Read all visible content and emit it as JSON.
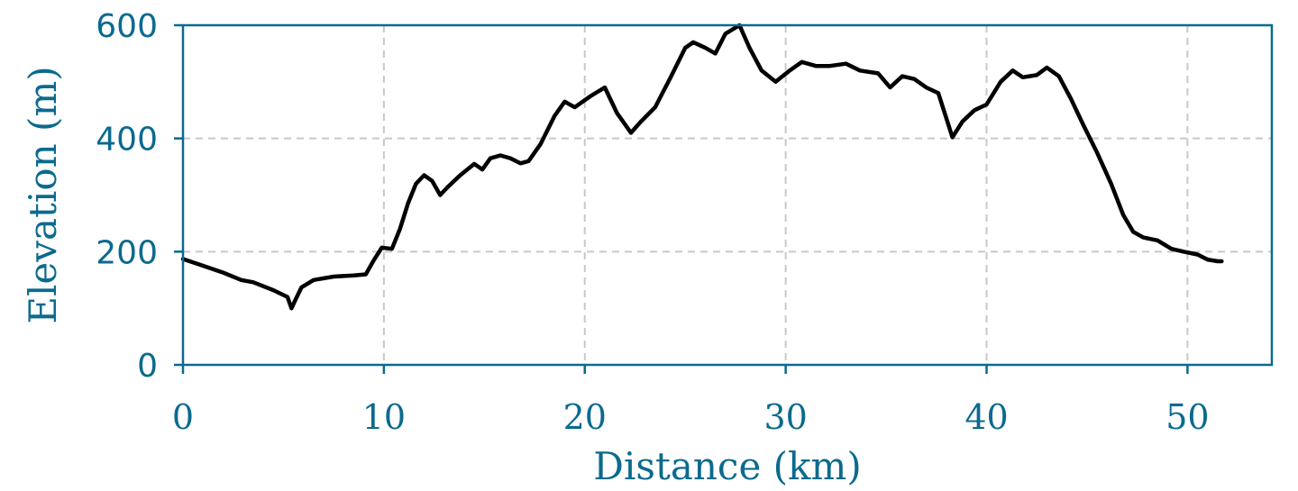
{
  "colors": {
    "axis": "#0b6a8e",
    "line": "#000000",
    "grid": "#c8c8c8",
    "background": "#ffffff"
  },
  "chart_data": {
    "type": "line",
    "title": "",
    "xlabel": "Distance (km)",
    "ylabel": "Elevation (m)",
    "xlim": [
      0,
      54.2
    ],
    "ylim": [
      0,
      600
    ],
    "xticks": [
      0,
      10,
      20,
      30,
      40,
      50
    ],
    "xtick_labels": [
      "0",
      "10",
      "20",
      "30",
      "40",
      "50"
    ],
    "yticks": [
      0,
      200,
      400,
      600
    ],
    "ytick_labels": [
      "0",
      "200",
      "400",
      "600"
    ],
    "grid": true,
    "legend": "none",
    "series": [
      {
        "x": [
          0,
          1,
          2,
          2.9,
          3.5,
          4.5,
          5.2,
          5.4,
          5.6,
          5.9,
          6.5,
          7.5,
          8.5,
          9.1,
          9.5,
          9.9,
          10.4,
          10.8,
          11.2,
          11.6,
          12,
          12.4,
          12.8,
          13.2,
          13.8,
          14.5,
          14.9,
          15.3,
          15.8,
          16.3,
          16.8,
          17.2,
          17.8,
          18.5,
          19,
          19.5,
          20.3,
          21,
          21.6,
          22.3,
          22.8,
          23.5,
          24.3,
          25,
          25.4,
          26,
          26.5,
          27,
          27.7,
          28.2,
          28.8,
          29.5,
          30.2,
          30.8,
          31.5,
          32.2,
          33,
          33.7,
          34.6,
          35.2,
          35.8,
          36.4,
          37,
          37.6,
          38.3,
          38.8,
          39.4,
          40,
          40.7,
          41.3,
          41.8,
          42.5,
          43,
          43.6,
          44.2,
          44.8,
          45.5,
          46.2,
          46.8,
          47.3,
          47.8,
          48.5,
          49.2,
          49.8,
          50.5,
          51,
          51.5,
          51.7
        ],
        "y": [
          187,
          175,
          163,
          150,
          146,
          132,
          120,
          100,
          115,
          137,
          150,
          156,
          158,
          160,
          185,
          207,
          205,
          240,
          285,
          320,
          335,
          325,
          300,
          315,
          335,
          355,
          345,
          365,
          370,
          365,
          356,
          360,
          390,
          440,
          465,
          455,
          475,
          490,
          445,
          410,
          430,
          455,
          510,
          560,
          570,
          560,
          550,
          585,
          600,
          560,
          520,
          500,
          520,
          535,
          528,
          528,
          532,
          520,
          515,
          490,
          510,
          505,
          490,
          480,
          402,
          430,
          450,
          460,
          500,
          520,
          508,
          512,
          525,
          510,
          470,
          425,
          375,
          320,
          265,
          235,
          225,
          220,
          205,
          200,
          195,
          186,
          183,
          183
        ]
      }
    ]
  }
}
